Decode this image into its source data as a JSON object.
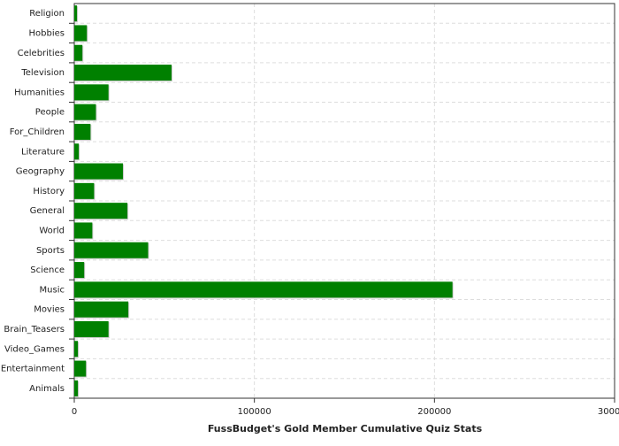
{
  "chart_data": {
    "type": "hbar",
    "title": "FussBudget's Gold Member Cumulative Quiz Stats",
    "categories": [
      "Religion",
      "Hobbies",
      "Celebrities",
      "Television",
      "Humanities",
      "People",
      "For_Children",
      "Literature",
      "Geography",
      "History",
      "General",
      "World",
      "Sports",
      "Science",
      "Music",
      "Movies",
      "Brain_Teasers",
      "Video_Games",
      "Entertainment",
      "Animals"
    ],
    "values": [
      1500,
      7000,
      4500,
      54000,
      19000,
      12000,
      9000,
      2500,
      27000,
      11000,
      29500,
      10000,
      41000,
      5500,
      210000,
      30000,
      19000,
      2000,
      6500,
      2000
    ],
    "color": "#008000",
    "xlim": [
      0,
      300000
    ],
    "xticks": [
      0,
      100000,
      200000,
      300000
    ],
    "grid": true
  }
}
